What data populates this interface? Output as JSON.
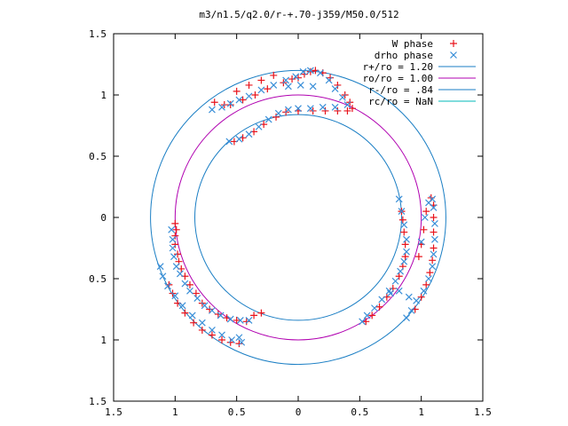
{
  "chart_data": {
    "type": "scatter",
    "title": "m3/n1.5/q2.0/r-+.70-j359/M50.0/512",
    "xlim": [
      -1.5,
      1.5
    ],
    "ylim": [
      -1.5,
      1.5
    ],
    "x_tick_labels": [
      "1.5",
      "1",
      "0.5",
      "0",
      "0.5",
      "1",
      "1.5"
    ],
    "y_tick_labels": [
      "1.5",
      "1",
      "0.5",
      "0",
      "0.5",
      "1",
      "1.5"
    ],
    "grid": false,
    "legend_position": "top-right",
    "colors": {
      "w_phase": "#e8141c",
      "drho_phase": "#3a8fd8",
      "r_plus": "#1a7ec4",
      "r_zero": "#b000b0",
      "r_minus": "#1a7ec4",
      "r_c": "#00b8b8"
    },
    "circles": [
      {
        "name": "r+/ro = 1.20",
        "radius": 1.2,
        "color_key": "r_plus"
      },
      {
        "name": "ro/ro = 1.00",
        "radius": 1.0,
        "color_key": "r_zero"
      },
      {
        "name": "r-/ro = .84",
        "radius": 0.84,
        "color_key": "r_minus"
      },
      {
        "name": "rc/ro = NaN",
        "radius": null,
        "color_key": "r_c"
      }
    ],
    "series": [
      {
        "name": "W phase",
        "marker": "plus",
        "color_key": "w_phase",
        "points": [
          [
            -0.55,
            0.92
          ],
          [
            -0.45,
            0.96
          ],
          [
            -0.35,
            1.0
          ],
          [
            -0.25,
            1.05
          ],
          [
            -0.12,
            1.1
          ],
          [
            -0.05,
            1.13
          ],
          [
            0.0,
            1.14
          ],
          [
            0.05,
            1.17
          ],
          [
            0.1,
            1.19
          ],
          [
            0.14,
            1.2
          ],
          [
            0.2,
            1.18
          ],
          [
            0.26,
            1.14
          ],
          [
            0.32,
            1.08
          ],
          [
            0.38,
            1.0
          ],
          [
            0.42,
            0.94
          ],
          [
            0.44,
            0.89
          ],
          [
            0.4,
            0.87
          ],
          [
            0.32,
            0.87
          ],
          [
            0.22,
            0.87
          ],
          [
            0.12,
            0.87
          ],
          [
            0.0,
            0.87
          ],
          [
            -0.1,
            0.86
          ],
          [
            -0.18,
            0.82
          ],
          [
            -0.28,
            0.76
          ],
          [
            -0.36,
            0.7
          ],
          [
            -0.45,
            0.65
          ],
          [
            -0.52,
            0.62
          ],
          [
            -0.6,
            0.92
          ],
          [
            -0.68,
            0.94
          ],
          [
            -0.5,
            1.03
          ],
          [
            -0.4,
            1.08
          ],
          [
            -0.3,
            1.12
          ],
          [
            -0.2,
            1.16
          ],
          [
            -1.0,
            -0.05
          ],
          [
            -0.99,
            -0.1
          ],
          [
            -1.0,
            -0.15
          ],
          [
            -1.0,
            -0.22
          ],
          [
            -0.98,
            -0.3
          ],
          [
            -0.97,
            -0.36
          ],
          [
            -0.95,
            -0.42
          ],
          [
            -0.92,
            -0.48
          ],
          [
            -0.88,
            -0.55
          ],
          [
            -0.83,
            -0.62
          ],
          [
            -0.78,
            -0.7
          ],
          [
            -0.72,
            -0.75
          ],
          [
            -0.65,
            -0.79
          ],
          [
            -0.58,
            -0.82
          ],
          [
            -0.5,
            -0.84
          ],
          [
            -0.42,
            -0.85
          ],
          [
            -0.3,
            -0.78
          ],
          [
            -0.36,
            -0.8
          ],
          [
            -1.05,
            -0.55
          ],
          [
            -1.02,
            -0.62
          ],
          [
            -0.98,
            -0.7
          ],
          [
            -0.92,
            -0.78
          ],
          [
            -0.85,
            -0.86
          ],
          [
            -0.78,
            -0.92
          ],
          [
            -0.7,
            -0.96
          ],
          [
            -0.62,
            -1.0
          ],
          [
            -0.55,
            -1.02
          ],
          [
            -0.48,
            -1.03
          ],
          [
            0.55,
            -0.85
          ],
          [
            0.6,
            -0.8
          ],
          [
            0.66,
            -0.73
          ],
          [
            0.72,
            -0.65
          ],
          [
            0.77,
            -0.58
          ],
          [
            0.82,
            -0.48
          ],
          [
            0.85,
            -0.4
          ],
          [
            0.87,
            -0.32
          ],
          [
            0.87,
            -0.22
          ],
          [
            0.86,
            -0.12
          ],
          [
            0.85,
            -0.02
          ],
          [
            0.84,
            0.05
          ],
          [
            0.95,
            -0.75
          ],
          [
            1.0,
            -0.65
          ],
          [
            1.04,
            -0.55
          ],
          [
            1.07,
            -0.45
          ],
          [
            1.09,
            -0.35
          ],
          [
            1.1,
            -0.25
          ],
          [
            1.1,
            -0.12
          ],
          [
            1.1,
            0.0
          ],
          [
            1.1,
            0.1
          ],
          [
            1.08,
            0.16
          ],
          [
            1.04,
            0.05
          ],
          [
            1.02,
            -0.1
          ],
          [
            1.0,
            -0.22
          ],
          [
            0.98,
            -0.32
          ]
        ]
      },
      {
        "name": "drho phase",
        "marker": "cross",
        "color_key": "drho_phase",
        "points": [
          [
            -0.7,
            0.88
          ],
          [
            -0.62,
            0.9
          ],
          [
            -0.55,
            0.93
          ],
          [
            -0.48,
            0.96
          ],
          [
            -0.4,
            0.99
          ],
          [
            -0.3,
            1.04
          ],
          [
            -0.2,
            1.08
          ],
          [
            -0.1,
            1.12
          ],
          [
            -0.02,
            1.15
          ],
          [
            0.04,
            1.19
          ],
          [
            0.1,
            1.2
          ],
          [
            0.18,
            1.18
          ],
          [
            0.25,
            1.12
          ],
          [
            0.3,
            1.05
          ],
          [
            0.36,
            0.98
          ],
          [
            0.4,
            0.92
          ],
          [
            0.3,
            0.9
          ],
          [
            0.2,
            0.9
          ],
          [
            0.1,
            0.89
          ],
          [
            0.0,
            0.89
          ],
          [
            -0.08,
            0.88
          ],
          [
            -0.16,
            0.85
          ],
          [
            -0.24,
            0.8
          ],
          [
            -0.32,
            0.74
          ],
          [
            -0.4,
            0.68
          ],
          [
            -0.48,
            0.64
          ],
          [
            -0.56,
            0.62
          ],
          [
            -0.08,
            1.07
          ],
          [
            0.02,
            1.08
          ],
          [
            0.12,
            1.07
          ],
          [
            -1.03,
            -0.1
          ],
          [
            -1.02,
            -0.18
          ],
          [
            -1.02,
            -0.25
          ],
          [
            -1.01,
            -0.32
          ],
          [
            -0.99,
            -0.4
          ],
          [
            -0.96,
            -0.46
          ],
          [
            -0.92,
            -0.54
          ],
          [
            -0.88,
            -0.6
          ],
          [
            -0.82,
            -0.66
          ],
          [
            -0.76,
            -0.72
          ],
          [
            -0.7,
            -0.76
          ],
          [
            -0.63,
            -0.8
          ],
          [
            -0.55,
            -0.83
          ],
          [
            -0.47,
            -0.84
          ],
          [
            -0.4,
            -0.84
          ],
          [
            -1.12,
            -0.4
          ],
          [
            -1.1,
            -0.48
          ],
          [
            -1.06,
            -0.56
          ],
          [
            -1.0,
            -0.64
          ],
          [
            -0.94,
            -0.72
          ],
          [
            -0.86,
            -0.8
          ],
          [
            -0.78,
            -0.86
          ],
          [
            -0.7,
            -0.92
          ],
          [
            -0.62,
            -0.96
          ],
          [
            -0.54,
            -1.0
          ],
          [
            -0.46,
            -1.02
          ],
          [
            -0.48,
            -0.98
          ],
          [
            0.52,
            -0.85
          ],
          [
            0.56,
            -0.8
          ],
          [
            0.62,
            -0.74
          ],
          [
            0.68,
            -0.67
          ],
          [
            0.74,
            -0.6
          ],
          [
            0.79,
            -0.52
          ],
          [
            0.83,
            -0.44
          ],
          [
            0.86,
            -0.36
          ],
          [
            0.88,
            -0.28
          ],
          [
            0.88,
            -0.18
          ],
          [
            0.86,
            -0.06
          ],
          [
            0.84,
            0.05
          ],
          [
            0.82,
            0.15
          ],
          [
            0.75,
            -0.62
          ],
          [
            0.82,
            -0.6
          ],
          [
            0.9,
            -0.65
          ],
          [
            0.96,
            -0.68
          ],
          [
            1.02,
            -0.6
          ],
          [
            1.06,
            -0.5
          ],
          [
            1.09,
            -0.4
          ],
          [
            1.1,
            -0.3
          ],
          [
            1.11,
            -0.18
          ],
          [
            1.11,
            -0.05
          ],
          [
            1.1,
            0.08
          ],
          [
            1.09,
            0.15
          ],
          [
            1.06,
            0.12
          ],
          [
            1.03,
            0.0
          ],
          [
            1.0,
            -0.2
          ],
          [
            0.92,
            -0.76
          ],
          [
            0.88,
            -0.82
          ]
        ]
      }
    ]
  }
}
